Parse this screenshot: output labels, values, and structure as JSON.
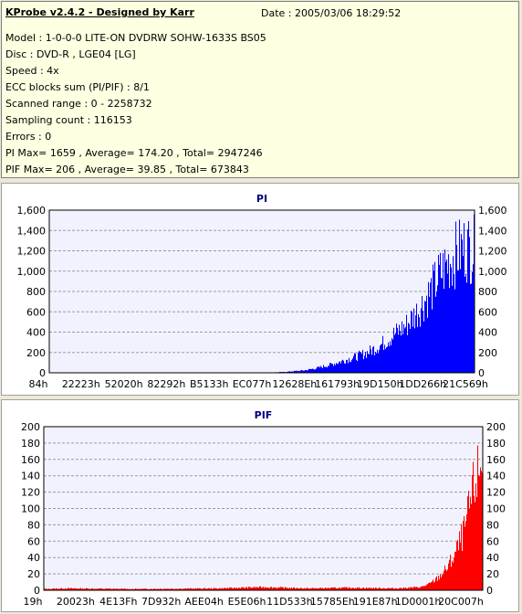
{
  "info": {
    "title": "KProbe v2.4.2 - Designed by Karr",
    "date": "Date : 2005/03/06 18:29:52",
    "lines": [
      "Model : 1-0-0-0 LITE-ON DVDRW SOHW-1633S BS05",
      "Disc : DVD-R , LGE04 [LG]",
      "Speed : 4x",
      "ECC blocks sum (PI/PIF) : 8/1",
      "Scanned range : 0 - 2258732",
      "Sampling count : 116153",
      "Errors : 0",
      "PI Max= 1659 , Average= 174.20 , Total= 2947246",
      "PIF Max= 206 , Average= 39.85 , Total= 673843"
    ]
  },
  "chart_data": [
    {
      "type": "area",
      "title": "PI",
      "color": "#0000ff",
      "ylim": [
        0,
        1600
      ],
      "yticks": [
        "0",
        "200",
        "400",
        "600",
        "800",
        "1,000",
        "1,200",
        "1,400",
        "1,600"
      ],
      "xticks": [
        "84h",
        "22223h",
        "52020h",
        "82292h",
        "B5133h",
        "EC077h",
        "12628Eh",
        "161793h",
        "19D150h",
        "1DD266h",
        "21C569h"
      ],
      "grid": true,
      "x": [
        0,
        0.3,
        0.5,
        0.55,
        0.6,
        0.63,
        0.66,
        0.69,
        0.72,
        0.75,
        0.78,
        0.81,
        0.84,
        0.87,
        0.9,
        0.92,
        0.94,
        0.96,
        0.98,
        1.0
      ],
      "values": [
        0,
        0,
        0,
        10,
        30,
        60,
        100,
        150,
        200,
        260,
        350,
        480,
        600,
        800,
        1050,
        1250,
        1400,
        1520,
        1600,
        1560
      ]
    },
    {
      "type": "area",
      "title": "PIF",
      "color": "#ff0000",
      "ylim": [
        0,
        200
      ],
      "yticks": [
        "0",
        "20",
        "40",
        "60",
        "80",
        "100",
        "120",
        "140",
        "160",
        "180",
        "200"
      ],
      "xticks": [
        "19h",
        "20023h",
        "4E13Fh",
        "7D932h",
        "AEE04h",
        "E5E06h",
        "11D533h",
        "15785Eh",
        "191E87h",
        "1D0001h",
        "20C007h"
      ],
      "grid": true,
      "x": [
        0,
        0.05,
        0.2,
        0.4,
        0.5,
        0.6,
        0.7,
        0.8,
        0.86,
        0.88,
        0.9,
        0.92,
        0.94,
        0.96,
        0.98,
        1.0
      ],
      "values": [
        2,
        3,
        2,
        3,
        5,
        3,
        4,
        3,
        5,
        10,
        20,
        35,
        60,
        95,
        160,
        205
      ]
    }
  ]
}
